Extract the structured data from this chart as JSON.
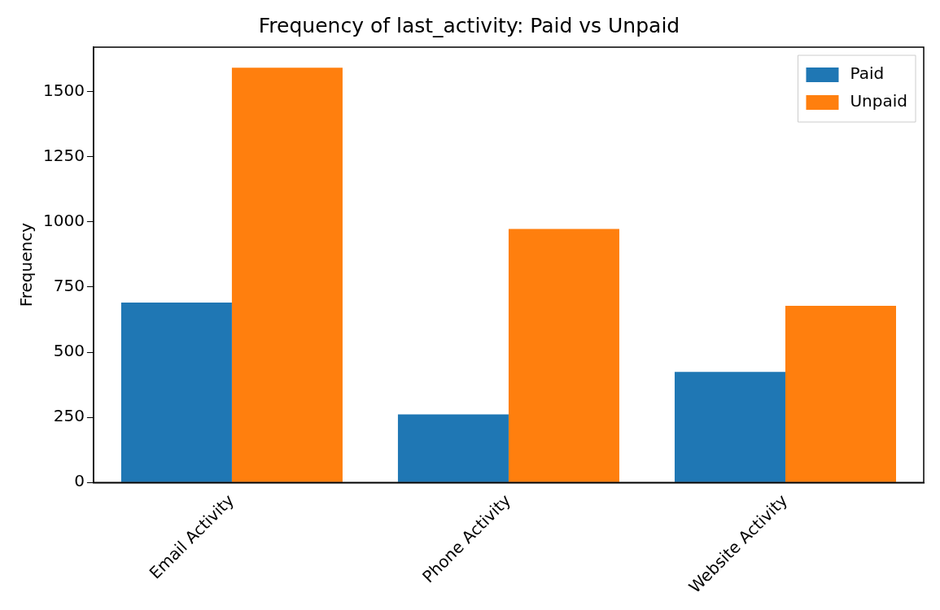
{
  "chart_data": {
    "type": "bar",
    "title": "Frequency of last_activity: Paid vs Unpaid",
    "ylabel": "Frequency",
    "categories": [
      "Email Activity",
      "Phone Activity",
      "Website Activity"
    ],
    "series": [
      {
        "name": "Paid",
        "color": "#1f77b4",
        "values": [
          690,
          261,
          424
        ]
      },
      {
        "name": "Unpaid",
        "color": "#ff7f0e",
        "values": [
          1591,
          973,
          678
        ]
      }
    ],
    "ylim": [
      0,
      1670
    ],
    "yticks": [
      0,
      250,
      500,
      750,
      1000,
      1250,
      1500
    ],
    "grid": false,
    "legend": "top right"
  }
}
